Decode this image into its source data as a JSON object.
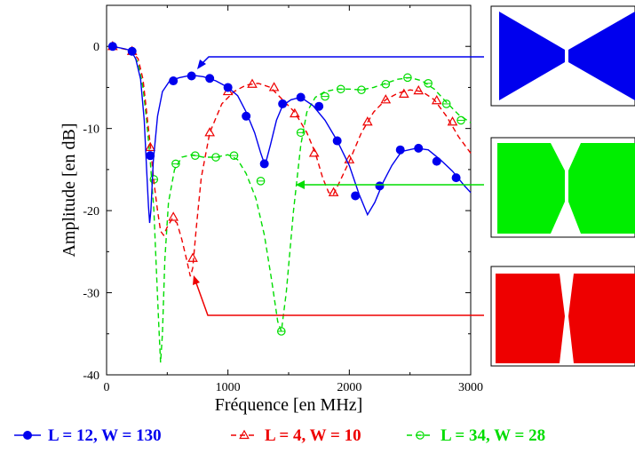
{
  "chart_data": {
    "type": "line",
    "xlabel": "Fréquence [en MHz]",
    "ylabel": "Amplitude [en dB]",
    "xlim": [
      0,
      3000
    ],
    "ylim": [
      -40,
      5
    ],
    "x_ticks": [
      "0",
      "1000",
      "2000",
      "3000"
    ],
    "y_ticks": [
      "0",
      "-10",
      "-20",
      "-30",
      "-40"
    ],
    "x_tick_values": [
      0,
      1000,
      2000,
      3000
    ],
    "y_tick_values": [
      0,
      -10,
      -20,
      -30,
      -40
    ],
    "grid": false,
    "legend_position": "bottom",
    "series": [
      {
        "name": "L = 12, W = 130",
        "color": "#0000ee",
        "line_style": "solid",
        "marker": "filled-circle",
        "curve": [
          [
            50,
            0
          ],
          [
            150,
            -0.3
          ],
          [
            200,
            -0.5
          ],
          [
            240,
            -1.5
          ],
          [
            280,
            -4
          ],
          [
            310,
            -9
          ],
          [
            330,
            -15
          ],
          [
            345,
            -19.5
          ],
          [
            355,
            -21.5
          ],
          [
            365,
            -20
          ],
          [
            385,
            -14
          ],
          [
            420,
            -8.5
          ],
          [
            460,
            -5.5
          ],
          [
            520,
            -4.2
          ],
          [
            600,
            -3.8
          ],
          [
            700,
            -3.5
          ],
          [
            800,
            -3.7
          ],
          [
            900,
            -4.2
          ],
          [
            1000,
            -5
          ],
          [
            1080,
            -6
          ],
          [
            1150,
            -8
          ],
          [
            1220,
            -10.5
          ],
          [
            1270,
            -13
          ],
          [
            1305,
            -14.5
          ],
          [
            1350,
            -12
          ],
          [
            1400,
            -9
          ],
          [
            1450,
            -7.2
          ],
          [
            1520,
            -6.5
          ],
          [
            1600,
            -6.2
          ],
          [
            1700,
            -7.2
          ],
          [
            1800,
            -9
          ],
          [
            1900,
            -11.5
          ],
          [
            2000,
            -14.5
          ],
          [
            2080,
            -18
          ],
          [
            2150,
            -20.5
          ],
          [
            2210,
            -19
          ],
          [
            2280,
            -16.5
          ],
          [
            2350,
            -14.5
          ],
          [
            2430,
            -12.8
          ],
          [
            2550,
            -12.4
          ],
          [
            2650,
            -12.6
          ],
          [
            2750,
            -13.8
          ],
          [
            2850,
            -15.2
          ],
          [
            2950,
            -17
          ],
          [
            3000,
            -17.8
          ]
        ],
        "markers": [
          [
            50,
            0
          ],
          [
            210,
            -0.6
          ],
          [
            360,
            -13.3
          ],
          [
            550,
            -4.2
          ],
          [
            700,
            -3.6
          ],
          [
            850,
            -3.9
          ],
          [
            1000,
            -5
          ],
          [
            1150,
            -8.5
          ],
          [
            1300,
            -14.3
          ],
          [
            1450,
            -7
          ],
          [
            1600,
            -6.2
          ],
          [
            1750,
            -7.3
          ],
          [
            1900,
            -11.5
          ],
          [
            2050,
            -18.2
          ],
          [
            2250,
            -17
          ],
          [
            2420,
            -12.6
          ],
          [
            2570,
            -12.4
          ],
          [
            2720,
            -14
          ],
          [
            2880,
            -16
          ]
        ]
      },
      {
        "name": "L = 4, W = 10",
        "color": "#ee0000",
        "line_style": "dashed",
        "marker": "open-triangle",
        "curve": [
          [
            50,
            0
          ],
          [
            200,
            -0.5
          ],
          [
            260,
            -1.5
          ],
          [
            300,
            -4
          ],
          [
            330,
            -8
          ],
          [
            360,
            -12
          ],
          [
            390,
            -16.5
          ],
          [
            420,
            -20
          ],
          [
            445,
            -22.5
          ],
          [
            470,
            -23
          ],
          [
            500,
            -22
          ],
          [
            540,
            -21
          ],
          [
            580,
            -21.5
          ],
          [
            620,
            -23.5
          ],
          [
            660,
            -26
          ],
          [
            690,
            -28
          ],
          [
            710,
            -27
          ],
          [
            740,
            -22
          ],
          [
            780,
            -16
          ],
          [
            850,
            -10.5
          ],
          [
            950,
            -7
          ],
          [
            1050,
            -5.5
          ],
          [
            1150,
            -4.7
          ],
          [
            1250,
            -4.5
          ],
          [
            1350,
            -5
          ],
          [
            1450,
            -6.5
          ],
          [
            1550,
            -8
          ],
          [
            1650,
            -10.5
          ],
          [
            1720,
            -13
          ],
          [
            1780,
            -16
          ],
          [
            1830,
            -17.8
          ],
          [
            1870,
            -18
          ],
          [
            1920,
            -16.5
          ],
          [
            2000,
            -14
          ],
          [
            2100,
            -10.5
          ],
          [
            2200,
            -8
          ],
          [
            2300,
            -6.5
          ],
          [
            2400,
            -5.7
          ],
          [
            2500,
            -5.3
          ],
          [
            2600,
            -5.5
          ],
          [
            2700,
            -6.5
          ],
          [
            2800,
            -8.5
          ],
          [
            2900,
            -11
          ],
          [
            3000,
            -13
          ]
        ],
        "markers": [
          [
            50,
            0
          ],
          [
            210,
            -0.6
          ],
          [
            360,
            -12.3
          ],
          [
            550,
            -20.8
          ],
          [
            710,
            -25.8
          ],
          [
            850,
            -10.5
          ],
          [
            1000,
            -5.5
          ],
          [
            1200,
            -4.6
          ],
          [
            1380,
            -5
          ],
          [
            1550,
            -8.2
          ],
          [
            1710,
            -13
          ],
          [
            1870,
            -17.8
          ],
          [
            2000,
            -13.8
          ],
          [
            2150,
            -9.2
          ],
          [
            2300,
            -6.5
          ],
          [
            2450,
            -5.8
          ],
          [
            2570,
            -5.4
          ],
          [
            2720,
            -6.6
          ],
          [
            2850,
            -9.2
          ]
        ]
      },
      {
        "name": "L = 34, W = 28",
        "color": "#00dd00",
        "line_style": "dashed",
        "marker": "open-circle",
        "curve": [
          [
            50,
            0
          ],
          [
            200,
            -0.5
          ],
          [
            260,
            -2
          ],
          [
            300,
            -5
          ],
          [
            330,
            -9
          ],
          [
            360,
            -14
          ],
          [
            390,
            -20
          ],
          [
            410,
            -27
          ],
          [
            430,
            -34
          ],
          [
            445,
            -38.5
          ],
          [
            460,
            -35
          ],
          [
            480,
            -26
          ],
          [
            510,
            -19
          ],
          [
            560,
            -15
          ],
          [
            620,
            -13.5
          ],
          [
            700,
            -13.2
          ],
          [
            800,
            -13.5
          ],
          [
            900,
            -13.5
          ],
          [
            1000,
            -13.2
          ],
          [
            1080,
            -13.8
          ],
          [
            1150,
            -15.5
          ],
          [
            1230,
            -18.5
          ],
          [
            1300,
            -23
          ],
          [
            1360,
            -28.5
          ],
          [
            1410,
            -33.5
          ],
          [
            1440,
            -34.7
          ],
          [
            1480,
            -30
          ],
          [
            1540,
            -20
          ],
          [
            1600,
            -12
          ],
          [
            1650,
            -8
          ],
          [
            1720,
            -6.2
          ],
          [
            1800,
            -5.5
          ],
          [
            1900,
            -5.2
          ],
          [
            2000,
            -5.2
          ],
          [
            2100,
            -5.3
          ],
          [
            2200,
            -5
          ],
          [
            2300,
            -4.5
          ],
          [
            2400,
            -4
          ],
          [
            2500,
            -3.8
          ],
          [
            2600,
            -4.2
          ],
          [
            2700,
            -5.2
          ],
          [
            2800,
            -6.8
          ],
          [
            2900,
            -8.3
          ],
          [
            3000,
            -9.3
          ]
        ],
        "markers": [
          [
            50,
            0
          ],
          [
            210,
            -0.6
          ],
          [
            390,
            -16.2
          ],
          [
            570,
            -14.3
          ],
          [
            730,
            -13.3
          ],
          [
            900,
            -13.5
          ],
          [
            1050,
            -13.3
          ],
          [
            1270,
            -16.4
          ],
          [
            1440,
            -34.7
          ],
          [
            1600,
            -10.5
          ],
          [
            1800,
            -6.1
          ],
          [
            1930,
            -5.2
          ],
          [
            2100,
            -5.3
          ],
          [
            2300,
            -4.6
          ],
          [
            2480,
            -3.8
          ],
          [
            2650,
            -4.5
          ],
          [
            2800,
            -7
          ],
          [
            2920,
            -9
          ]
        ]
      }
    ]
  }
}
